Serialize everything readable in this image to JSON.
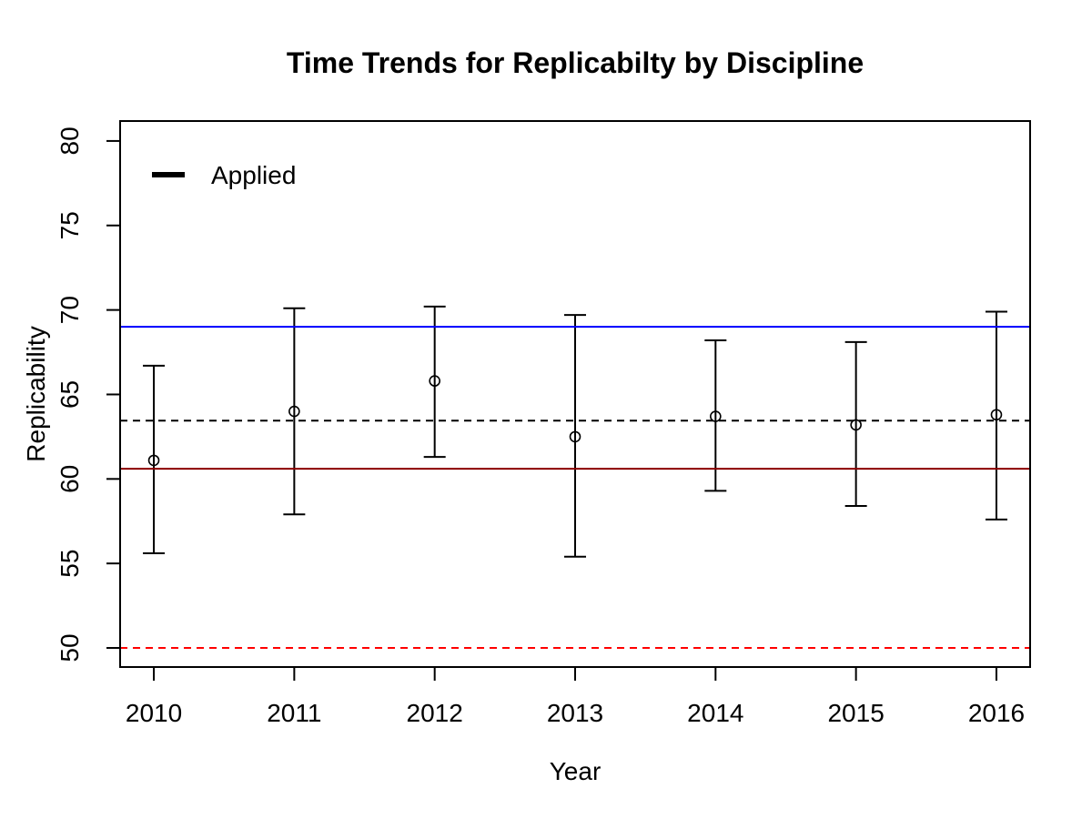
{
  "chart_data": {
    "type": "scatter",
    "title": "Time Trends for Replicabilty by Discipline",
    "xlabel": "Year",
    "ylabel": "Replicability",
    "categories": [
      "2010",
      "2011",
      "2012",
      "2013",
      "2014",
      "2015",
      "2016"
    ],
    "series": [
      {
        "name": "Applied",
        "marker": "open-circle",
        "color": "#000000",
        "points": [
          {
            "year": 2010,
            "value": 61.1,
            "lower": 55.6,
            "upper": 66.7
          },
          {
            "year": 2011,
            "value": 64.0,
            "lower": 57.9,
            "upper": 70.1
          },
          {
            "year": 2012,
            "value": 65.8,
            "lower": 61.3,
            "upper": 70.2
          },
          {
            "year": 2013,
            "value": 62.5,
            "lower": 55.4,
            "upper": 69.7
          },
          {
            "year": 2014,
            "value": 63.7,
            "lower": 59.3,
            "upper": 68.2
          },
          {
            "year": 2015,
            "value": 63.2,
            "lower": 58.4,
            "upper": 68.1
          },
          {
            "year": 2016,
            "value": 63.8,
            "lower": 57.6,
            "upper": 69.9
          }
        ]
      }
    ],
    "hlines": [
      {
        "name": "blue-solid-reference-line",
        "value": 69.0,
        "color": "#0000FF",
        "style": "solid",
        "width": 2
      },
      {
        "name": "black-dashed-mean-line",
        "value": 63.45,
        "color": "#000000",
        "style": "dashed",
        "width": 2
      },
      {
        "name": "darkred-solid-reference-line",
        "value": 60.6,
        "color": "#8B0000",
        "style": "solid",
        "width": 2
      },
      {
        "name": "red-dashed-50-line",
        "value": 50.0,
        "color": "#FF0000",
        "style": "dashed",
        "width": 2
      }
    ],
    "axes": {
      "xlim": [
        2009.76,
        2016.24
      ],
      "ylim": [
        48.87,
        81.18
      ],
      "xticks": [
        "2010",
        "2011",
        "2012",
        "2013",
        "2014",
        "2015",
        "2016"
      ],
      "xtick_values": [
        2010,
        2011,
        2012,
        2013,
        2014,
        2015,
        2016
      ],
      "yticks": [
        "50",
        "55",
        "60",
        "65",
        "70",
        "75",
        "80"
      ],
      "ytick_values": [
        50,
        55,
        60,
        65,
        70,
        75,
        80
      ],
      "grid": false
    },
    "legend": {
      "position": "top-left-inside",
      "entries": [
        {
          "label": "Applied",
          "color": "#000000",
          "line_width": 6
        }
      ]
    }
  }
}
